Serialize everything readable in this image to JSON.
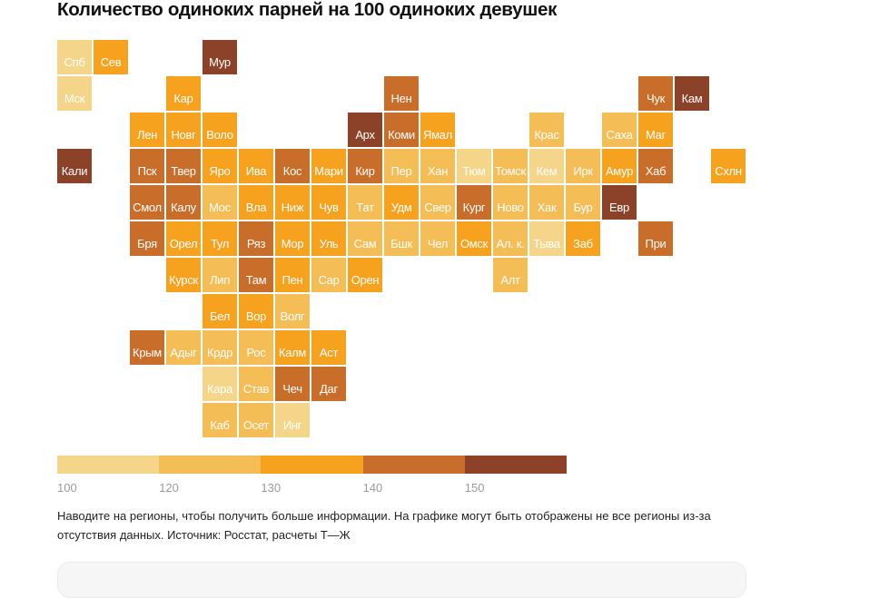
{
  "title": "Количество одиноких парней на 100 одиноких девушек",
  "chart_data": {
    "type": "heatmap",
    "subtype": "tile-grid-map",
    "title": "Количество одиноких парней на 100 одиноких девушек",
    "value_unit": "single men per 100 single women",
    "bins": [
      {
        "level": 1,
        "from": 100,
        "to": 120,
        "color": "#f5d589"
      },
      {
        "level": 2,
        "from": 120,
        "to": 130,
        "color": "#f5bd55"
      },
      {
        "level": 3,
        "from": 130,
        "to": 140,
        "color": "#f7a21f"
      },
      {
        "level": 4,
        "from": 140,
        "to": 150,
        "color": "#c96d2a"
      },
      {
        "level": 5,
        "from": 150,
        "to": null,
        "color": "#8c4228"
      }
    ],
    "legend_ticks": [
      "100",
      "120",
      "130",
      "140",
      "150"
    ],
    "regions": [
      {
        "label": "Спб",
        "row": 0,
        "col": 0,
        "level": 1
      },
      {
        "label": "Сев",
        "row": 0,
        "col": 1,
        "level": 3
      },
      {
        "label": "Мур",
        "row": 0,
        "col": 4,
        "level": 5
      },
      {
        "label": "Мск",
        "row": 1,
        "col": 0,
        "level": 1
      },
      {
        "label": "Кар",
        "row": 1,
        "col": 3,
        "level": 3
      },
      {
        "label": "Нен",
        "row": 1,
        "col": 9,
        "level": 4
      },
      {
        "label": "Чук",
        "row": 1,
        "col": 16,
        "level": 4
      },
      {
        "label": "Кам",
        "row": 1,
        "col": 17,
        "level": 5
      },
      {
        "label": "Лен",
        "row": 2,
        "col": 2,
        "level": 3
      },
      {
        "label": "Новг",
        "row": 2,
        "col": 3,
        "level": 3
      },
      {
        "label": "Воло",
        "row": 2,
        "col": 4,
        "level": 3
      },
      {
        "label": "Арх",
        "row": 2,
        "col": 8,
        "level": 5
      },
      {
        "label": "Коми",
        "row": 2,
        "col": 9,
        "level": 4
      },
      {
        "label": "Ямал",
        "row": 2,
        "col": 10,
        "level": 3
      },
      {
        "label": "Крас",
        "row": 2,
        "col": 13,
        "level": 2
      },
      {
        "label": "Саха",
        "row": 2,
        "col": 15,
        "level": 2
      },
      {
        "label": "Маг",
        "row": 2,
        "col": 16,
        "level": 3
      },
      {
        "label": "Кали",
        "row": 3,
        "col": 0,
        "level": 5
      },
      {
        "label": "Пск",
        "row": 3,
        "col": 2,
        "level": 4
      },
      {
        "label": "Твер",
        "row": 3,
        "col": 3,
        "level": 4
      },
      {
        "label": "Яро",
        "row": 3,
        "col": 4,
        "level": 3
      },
      {
        "label": "Ива",
        "row": 3,
        "col": 5,
        "level": 3
      },
      {
        "label": "Кос",
        "row": 3,
        "col": 6,
        "level": 4
      },
      {
        "label": "Мари",
        "row": 3,
        "col": 7,
        "level": 3
      },
      {
        "label": "Кир",
        "row": 3,
        "col": 8,
        "level": 4
      },
      {
        "label": "Пер",
        "row": 3,
        "col": 9,
        "level": 2
      },
      {
        "label": "Хан",
        "row": 3,
        "col": 10,
        "level": 2
      },
      {
        "label": "Тюм",
        "row": 3,
        "col": 11,
        "level": 1
      },
      {
        "label": "Томск",
        "row": 3,
        "col": 12,
        "level": 2
      },
      {
        "label": "Кем",
        "row": 3,
        "col": 13,
        "level": 1
      },
      {
        "label": "Ирк",
        "row": 3,
        "col": 14,
        "level": 2
      },
      {
        "label": "Амур",
        "row": 3,
        "col": 15,
        "level": 3
      },
      {
        "label": "Хаб",
        "row": 3,
        "col": 16,
        "level": 4
      },
      {
        "label": "Схлн",
        "row": 3,
        "col": 18,
        "level": 3
      },
      {
        "label": "Смол",
        "row": 4,
        "col": 2,
        "level": 4
      },
      {
        "label": "Калу",
        "row": 4,
        "col": 3,
        "level": 4
      },
      {
        "label": "Мос",
        "row": 4,
        "col": 4,
        "level": 2
      },
      {
        "label": "Вла",
        "row": 4,
        "col": 5,
        "level": 3
      },
      {
        "label": "Ниж",
        "row": 4,
        "col": 6,
        "level": 3
      },
      {
        "label": "Чув",
        "row": 4,
        "col": 7,
        "level": 3
      },
      {
        "label": "Тат",
        "row": 4,
        "col": 8,
        "level": 2
      },
      {
        "label": "Удм",
        "row": 4,
        "col": 9,
        "level": 3
      },
      {
        "label": "Свер",
        "row": 4,
        "col": 10,
        "level": 2
      },
      {
        "label": "Кург",
        "row": 4,
        "col": 11,
        "level": 4
      },
      {
        "label": "Ново",
        "row": 4,
        "col": 12,
        "level": 2
      },
      {
        "label": "Хак",
        "row": 4,
        "col": 13,
        "level": 2
      },
      {
        "label": "Бур",
        "row": 4,
        "col": 14,
        "level": 2
      },
      {
        "label": "Евр",
        "row": 4,
        "col": 15,
        "level": 5
      },
      {
        "label": "Бря",
        "row": 5,
        "col": 2,
        "level": 4
      },
      {
        "label": "Орел",
        "row": 5,
        "col": 3,
        "level": 3
      },
      {
        "label": "Тул",
        "row": 5,
        "col": 4,
        "level": 3
      },
      {
        "label": "Ряз",
        "row": 5,
        "col": 5,
        "level": 4
      },
      {
        "label": "Мор",
        "row": 5,
        "col": 6,
        "level": 3
      },
      {
        "label": "Уль",
        "row": 5,
        "col": 7,
        "level": 3
      },
      {
        "label": "Сам",
        "row": 5,
        "col": 8,
        "level": 2
      },
      {
        "label": "Бшк",
        "row": 5,
        "col": 9,
        "level": 2
      },
      {
        "label": "Чел",
        "row": 5,
        "col": 10,
        "level": 2
      },
      {
        "label": "Омск",
        "row": 5,
        "col": 11,
        "level": 3
      },
      {
        "label": "Ал. к.",
        "row": 5,
        "col": 12,
        "level": 2
      },
      {
        "label": "Тыва",
        "row": 5,
        "col": 13,
        "level": 1
      },
      {
        "label": "Заб",
        "row": 5,
        "col": 14,
        "level": 3
      },
      {
        "label": "При",
        "row": 5,
        "col": 16,
        "level": 4
      },
      {
        "label": "Курск",
        "row": 6,
        "col": 3,
        "level": 3
      },
      {
        "label": "Лип",
        "row": 6,
        "col": 4,
        "level": 2
      },
      {
        "label": "Там",
        "row": 6,
        "col": 5,
        "level": 4
      },
      {
        "label": "Пен",
        "row": 6,
        "col": 6,
        "level": 3
      },
      {
        "label": "Сар",
        "row": 6,
        "col": 7,
        "level": 2
      },
      {
        "label": "Орен",
        "row": 6,
        "col": 8,
        "level": 3
      },
      {
        "label": "Алт",
        "row": 6,
        "col": 12,
        "level": 2
      },
      {
        "label": "Бел",
        "row": 7,
        "col": 4,
        "level": 3
      },
      {
        "label": "Вор",
        "row": 7,
        "col": 5,
        "level": 3
      },
      {
        "label": "Волг",
        "row": 7,
        "col": 6,
        "level": 2
      },
      {
        "label": "Крым",
        "row": 8,
        "col": 2,
        "level": 4
      },
      {
        "label": "Адыг",
        "row": 8,
        "col": 3,
        "level": 2
      },
      {
        "label": "Крдр",
        "row": 8,
        "col": 4,
        "level": 2
      },
      {
        "label": "Рос",
        "row": 8,
        "col": 5,
        "level": 2
      },
      {
        "label": "Калм",
        "row": 8,
        "col": 6,
        "level": 3
      },
      {
        "label": "Аст",
        "row": 8,
        "col": 7,
        "level": 3
      },
      {
        "label": "Кара",
        "row": 9,
        "col": 4,
        "level": 1
      },
      {
        "label": "Став",
        "row": 9,
        "col": 5,
        "level": 2
      },
      {
        "label": "Чеч",
        "row": 9,
        "col": 6,
        "level": 4
      },
      {
        "label": "Даг",
        "row": 9,
        "col": 7,
        "level": 4
      },
      {
        "label": "Каб",
        "row": 10,
        "col": 4,
        "level": 2
      },
      {
        "label": "Осет",
        "row": 10,
        "col": 5,
        "level": 2
      },
      {
        "label": "Инг",
        "row": 10,
        "col": 6,
        "level": 1
      }
    ]
  },
  "note": "Наводите на регионы, чтобы получить больше информации. На графике могут быть отображены не все регионы из-за отсутствия данных. Источник: Росстат, расчеты Т—Ж"
}
